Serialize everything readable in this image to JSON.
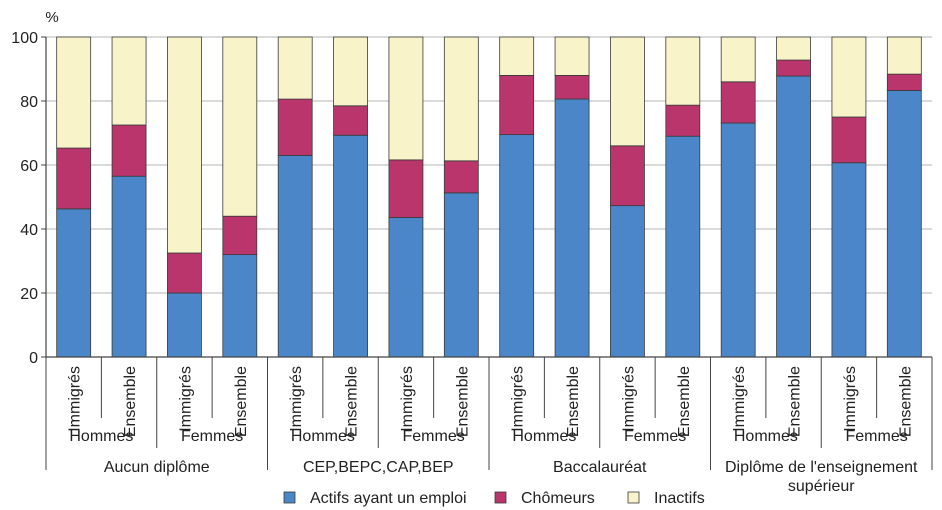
{
  "chart_data": {
    "type": "bar",
    "stacked": true,
    "y_unit": "%",
    "ylim": [
      0,
      100
    ],
    "yticks": [
      0,
      20,
      40,
      60,
      80,
      100
    ],
    "grid": true,
    "legend_position": "bottom",
    "categories": [
      "Immigrés",
      "Ensemble",
      "Immigrés",
      "Ensemble",
      "Immigrés",
      "Ensemble",
      "Immigrés",
      "Ensemble",
      "Immigrés",
      "Ensemble",
      "Immigrés",
      "Ensemble",
      "Immigrés",
      "Ensemble",
      "Immigrés",
      "Ensemble"
    ],
    "sex_groups": [
      "Hommes",
      "Femmes",
      "Hommes",
      "Femmes",
      "Hommes",
      "Femmes",
      "Hommes",
      "Femmes"
    ],
    "diploma_groups": [
      {
        "lines": [
          "Aucun diplôme"
        ]
      },
      {
        "lines": [
          "CEP,BEPC,CAP,BEP"
        ]
      },
      {
        "lines": [
          "Baccalauréat"
        ]
      },
      {
        "lines": [
          "Diplôme de l'enseignement",
          "supérieur"
        ]
      }
    ],
    "series": [
      {
        "name": "Actifs ayant un emploi",
        "color": "#4a86c8",
        "values": [
          46.3,
          56.5,
          20.0,
          32.0,
          63.0,
          69.3,
          43.6,
          51.3,
          69.5,
          80.6,
          47.3,
          69.0,
          73.1,
          87.8,
          60.7,
          83.3
        ]
      },
      {
        "name": "Chômeurs",
        "color": "#b9356b",
        "values": [
          19.0,
          16.0,
          12.5,
          12.0,
          17.6,
          9.2,
          18.0,
          10.0,
          18.5,
          7.4,
          18.7,
          9.7,
          12.9,
          5.0,
          14.3,
          5.1
        ]
      },
      {
        "name": "Inactifs",
        "color": "#f9f3c9",
        "values": [
          34.7,
          27.5,
          67.5,
          56.0,
          19.4,
          21.5,
          38.4,
          38.7,
          12.0,
          12.0,
          34.0,
          21.3,
          14.0,
          7.2,
          25.0,
          11.6
        ]
      }
    ]
  }
}
